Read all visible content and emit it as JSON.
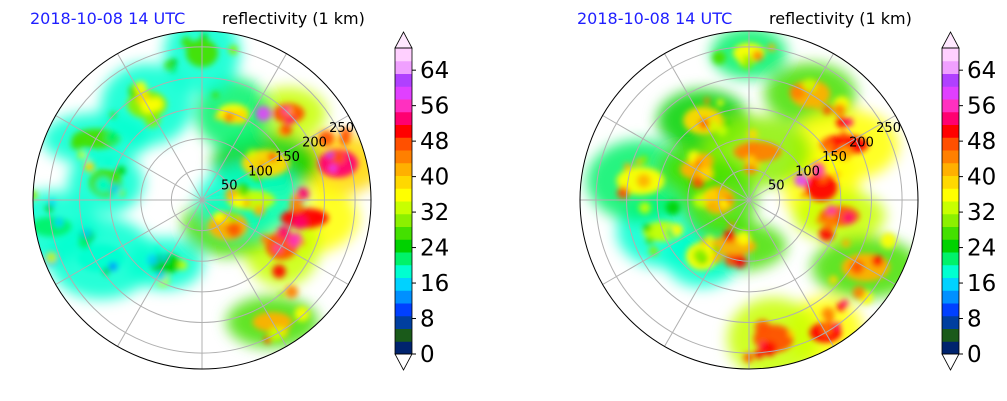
{
  "panels": [
    {
      "time_label": "2018-10-08 14 UTC",
      "product_label": "reflectivity (1 km)",
      "range_labels": [
        "50",
        "100",
        "150",
        "200",
        "250"
      ],
      "colorbar_ticks": [
        "0",
        "8",
        "16",
        "24",
        "32",
        "40",
        "48",
        "56",
        "64"
      ]
    },
    {
      "time_label": "2018-10-08 14 UTC",
      "product_label": "reflectivity (1 km)",
      "range_labels": [
        "50",
        "100",
        "150",
        "200",
        "250"
      ],
      "colorbar_ticks": [
        "0",
        "8",
        "16",
        "24",
        "32",
        "40",
        "48",
        "56",
        "64"
      ]
    }
  ],
  "colors": {
    "time_label": "#1f1fff",
    "reflectivity_scale": [
      "#00236e",
      "#1a5a1a",
      "#003f9f",
      "#0040ff",
      "#0090ff",
      "#00d2ff",
      "#00ffd0",
      "#00f26a",
      "#00d200",
      "#44e000",
      "#8cf000",
      "#c8ff00",
      "#ffff00",
      "#ffd800",
      "#ffb000",
      "#ff8000",
      "#ff5000",
      "#ff0000",
      "#ff0070",
      "#ff30c0",
      "#e040ff",
      "#b040ff",
      "#f0a0ff",
      "#ffd0ff"
    ]
  },
  "chart_data": [
    {
      "type": "heatmap",
      "projection": "polar",
      "title": "reflectivity (1 km)",
      "time": "2018-10-08 14 UTC",
      "range_rings": [
        50,
        100,
        150,
        200,
        250
      ],
      "azimuth_spokes_deg": [
        0,
        30,
        60,
        90,
        120,
        150,
        180,
        210,
        240,
        270,
        300,
        330
      ],
      "colorbar": {
        "min": 0,
        "max": 64,
        "ticks": [
          0,
          8,
          16,
          24,
          32,
          40,
          48,
          56,
          64
        ],
        "extend": "both"
      },
      "features": [
        {
          "azimuth_deg": 45,
          "range": 200,
          "reflectivity": 45
        },
        {
          "azimuth_deg": 75,
          "range": 230,
          "reflectivity": 50
        },
        {
          "azimuth_deg": 100,
          "range": 170,
          "reflectivity": 48
        },
        {
          "azimuth_deg": 120,
          "range": 150,
          "reflectivity": 44
        },
        {
          "azimuth_deg": 150,
          "range": 230,
          "reflectivity": 38
        },
        {
          "azimuth_deg": 60,
          "range": 120,
          "reflectivity": 36
        },
        {
          "azimuth_deg": 20,
          "range": 150,
          "reflectivity": 34
        },
        {
          "azimuth_deg": 330,
          "range": 180,
          "reflectivity": 28
        },
        {
          "azimuth_deg": 300,
          "range": 200,
          "reflectivity": 26
        },
        {
          "azimuth_deg": 280,
          "range": 160,
          "reflectivity": 24
        },
        {
          "azimuth_deg": 260,
          "range": 250,
          "reflectivity": 20
        },
        {
          "azimuth_deg": 240,
          "range": 190,
          "reflectivity": 18
        },
        {
          "azimuth_deg": 210,
          "range": 120,
          "reflectivity": 22
        },
        {
          "azimuth_deg": 135,
          "range": 60,
          "reflectivity": 38
        },
        {
          "azimuth_deg": 90,
          "range": 80,
          "reflectivity": 30
        },
        {
          "azimuth_deg": 0,
          "range": 240,
          "reflectivity": 24
        }
      ]
    },
    {
      "type": "heatmap",
      "projection": "polar",
      "title": "reflectivity (1 km)",
      "time": "2018-10-08 14 UTC",
      "range_rings": [
        50,
        100,
        150,
        200,
        250
      ],
      "azimuth_spokes_deg": [
        0,
        30,
        60,
        90,
        120,
        150,
        180,
        210,
        240,
        270,
        300,
        330
      ],
      "colorbar": {
        "min": 0,
        "max": 64,
        "ticks": [
          0,
          8,
          16,
          24,
          32,
          40,
          48,
          56,
          64
        ],
        "extend": "both"
      },
      "features": [
        {
          "azimuth_deg": 0,
          "range": 240,
          "reflectivity": 34
        },
        {
          "azimuth_deg": 30,
          "range": 200,
          "reflectivity": 38
        },
        {
          "azimuth_deg": 60,
          "range": 180,
          "reflectivity": 46
        },
        {
          "azimuth_deg": 80,
          "range": 120,
          "reflectivity": 48
        },
        {
          "azimuth_deg": 100,
          "range": 150,
          "reflectivity": 45
        },
        {
          "azimuth_deg": 120,
          "range": 220,
          "reflectivity": 40
        },
        {
          "azimuth_deg": 150,
          "range": 250,
          "reflectivity": 48
        },
        {
          "azimuth_deg": 170,
          "range": 230,
          "reflectivity": 44
        },
        {
          "azimuth_deg": 200,
          "range": 80,
          "reflectivity": 40
        },
        {
          "azimuth_deg": 220,
          "range": 120,
          "reflectivity": 32
        },
        {
          "azimuth_deg": 250,
          "range": 150,
          "reflectivity": 30
        },
        {
          "azimuth_deg": 280,
          "range": 180,
          "reflectivity": 34
        },
        {
          "azimuth_deg": 300,
          "range": 100,
          "reflectivity": 40
        },
        {
          "azimuth_deg": 330,
          "range": 150,
          "reflectivity": 36
        },
        {
          "azimuth_deg": 10,
          "range": 80,
          "reflectivity": 42
        },
        {
          "azimuth_deg": 270,
          "range": 50,
          "reflectivity": 38
        }
      ]
    }
  ]
}
